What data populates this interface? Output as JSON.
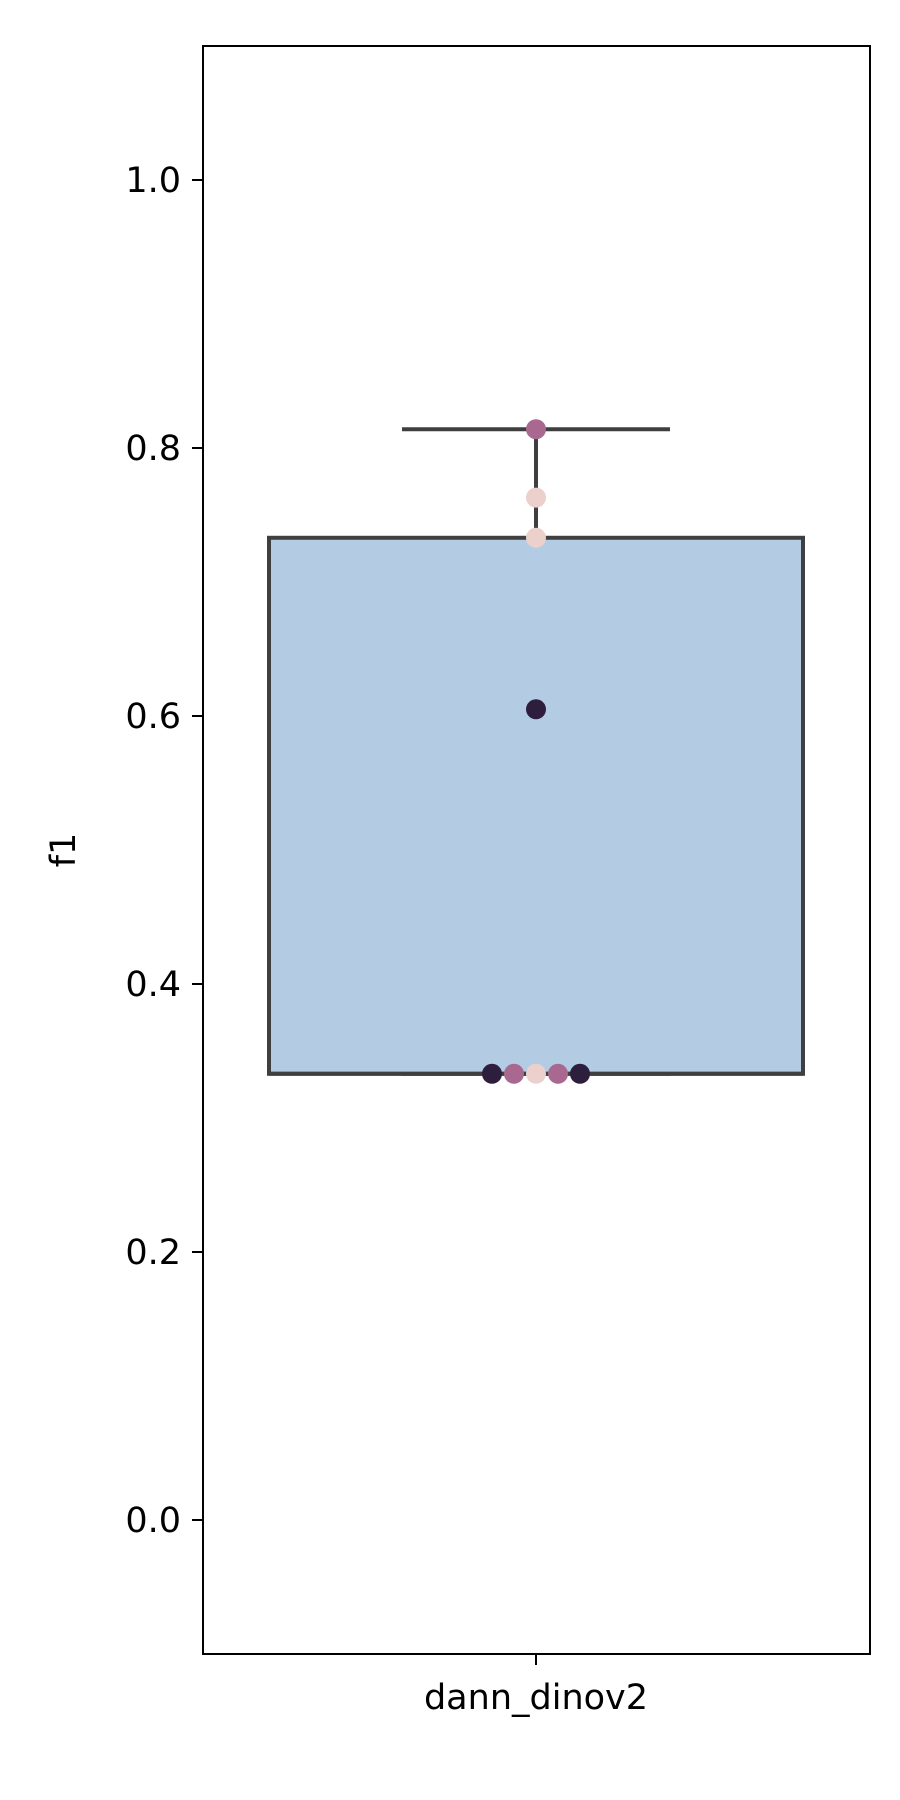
{
  "chart_data": {
    "type": "box",
    "title": "",
    "xlabel": "",
    "ylabel": "f1",
    "ylim": [
      -0.1,
      1.1
    ],
    "yticks": [
      0.0,
      0.2,
      0.4,
      0.6,
      0.8,
      1.0
    ],
    "ytick_labels": [
      "0.0",
      "0.2",
      "0.4",
      "0.6",
      "0.8",
      "1.0"
    ],
    "categories": [
      "dann_dinov2"
    ],
    "grid": false,
    "legend": "none",
    "box": {
      "category": "dann_dinov2",
      "q1": 0.333,
      "median": 0.333,
      "q3": 0.733,
      "whisker_low": 0.333,
      "whisker_high": 0.814,
      "fill_color": "#b3cce4",
      "edge_color": "#3f3f3f"
    },
    "points": [
      {
        "y": 0.814,
        "color": "#a8688f"
      },
      {
        "y": 0.763,
        "color": "#ebd0cb"
      },
      {
        "y": 0.733,
        "color": "#ebd0cb"
      },
      {
        "y": 0.605,
        "color": "#2e1e3e"
      },
      {
        "y": 0.333,
        "color": "#2e1e3e"
      },
      {
        "y": 0.333,
        "color": "#a8688f"
      },
      {
        "y": 0.333,
        "color": "#ebd0cb"
      },
      {
        "y": 0.333,
        "color": "#a8688f"
      },
      {
        "y": 0.333,
        "color": "#2e1e3e"
      }
    ]
  }
}
